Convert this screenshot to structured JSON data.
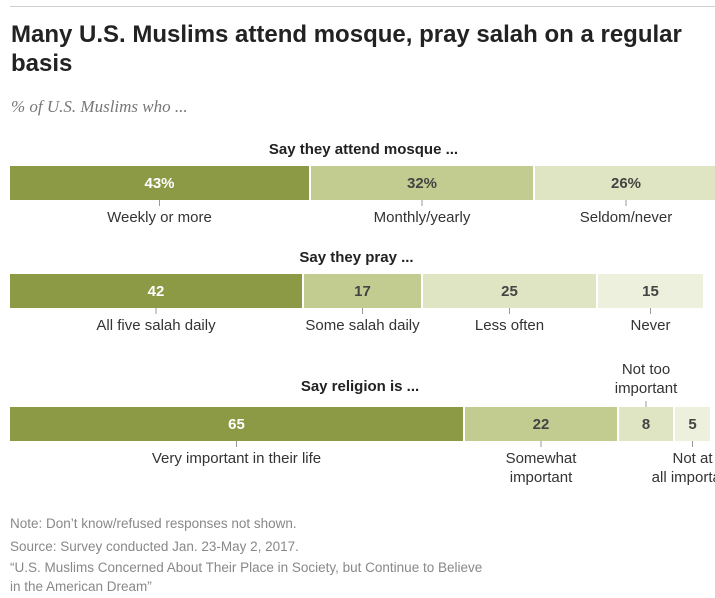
{
  "title": "Many U.S. Muslims attend mosque, pray salah on a regular basis",
  "subtitle": "% of U.S. Muslims who ...",
  "chart_data": {
    "type": "bar",
    "orientation": "horizontal-stacked",
    "groups": [
      {
        "heading": "Say they attend mosque ...",
        "segments": [
          {
            "value": 43,
            "value_label": "43%",
            "labels": [
              "Weekly or more"
            ],
            "color": "#8c9a46"
          },
          {
            "value": 32,
            "value_label": "32%",
            "labels": [
              "Monthly/yearly"
            ],
            "color": "#c2cc90"
          },
          {
            "value": 26,
            "value_label": "26%",
            "labels": [
              "Seldom/never"
            ],
            "color": "#dfe5c2"
          }
        ]
      },
      {
        "heading": "Say they pray ...",
        "segments": [
          {
            "value": 42,
            "value_label": "42",
            "labels": [
              "All five salah daily"
            ],
            "color": "#8c9a46"
          },
          {
            "value": 17,
            "value_label": "17",
            "labels": [
              "Some salah daily"
            ],
            "color": "#c2cc90"
          },
          {
            "value": 25,
            "value_label": "25",
            "labels": [
              "Less often"
            ],
            "color": "#dfe5c2"
          },
          {
            "value": 15,
            "value_label": "15",
            "labels": [
              "Never"
            ],
            "color": "#edf0dc"
          }
        ]
      },
      {
        "heading": "Say religion is ...",
        "segments": [
          {
            "value": 65,
            "value_label": "65",
            "labels": [
              "Very important in their life"
            ],
            "color": "#8c9a46"
          },
          {
            "value": 22,
            "value_label": "22",
            "labels": [
              "Somewhat",
              "important"
            ],
            "color": "#c2cc90"
          },
          {
            "value": 8,
            "value_label": "8",
            "labels": [
              "Not too",
              "important"
            ],
            "color": "#dfe5c2"
          },
          {
            "value": 5,
            "value_label": "5",
            "labels": [
              "Not at",
              "all important"
            ],
            "color": "#edf0dc"
          }
        ]
      }
    ]
  },
  "notes": [
    "Note: Don’t know/refused responses not shown.",
    "Source: Survey conducted Jan. 23-May 2, 2017.",
    "“U.S. Muslims Concerned About Their Place in Society, but Continue to Believe",
    "in the American Dream”"
  ]
}
